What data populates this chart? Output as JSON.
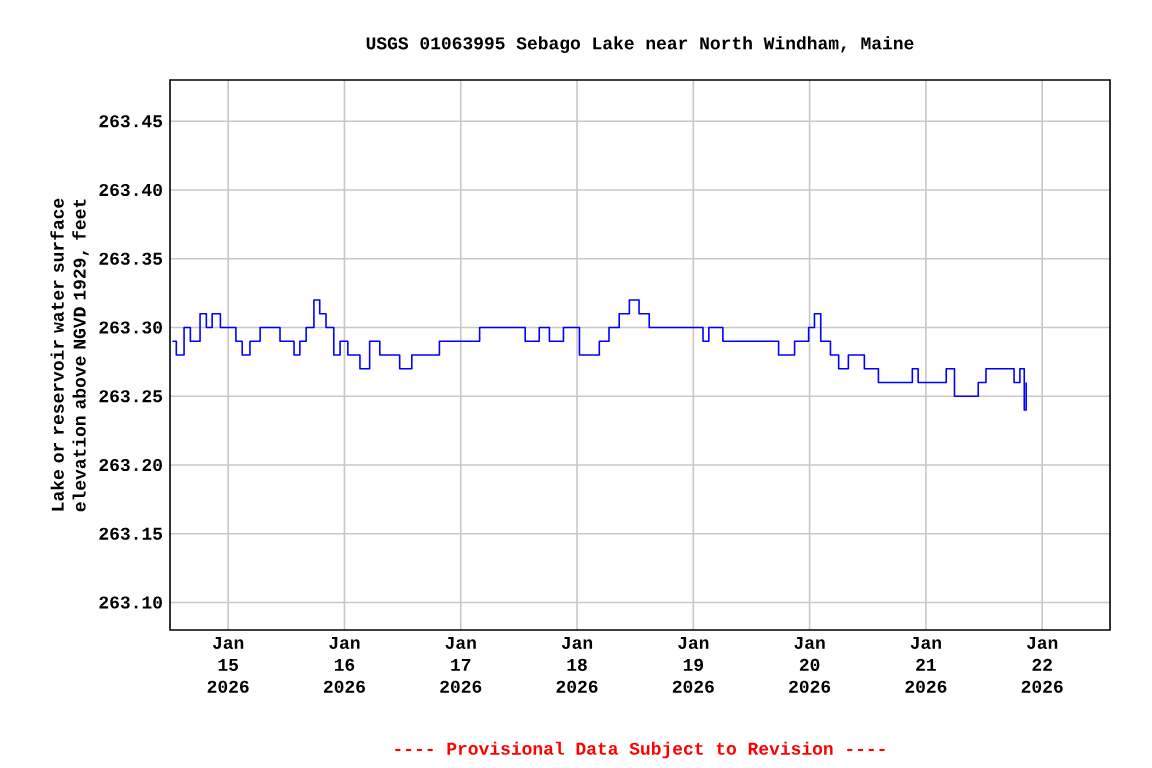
{
  "chart_data": {
    "type": "step",
    "title": "USGS 01063995 Sebago Lake near North Windham, Maine",
    "ylabel": "Lake or reservoir water surface elevation above NGVD 1929, feet",
    "annotations": [
      "---- Provisional Data Subject to Revision ----"
    ],
    "x": [
      "2026-01-14T12:30",
      "2026-01-14T13:18",
      "2026-01-14T14:54",
      "2026-01-14T16:12",
      "2026-01-14T18:12",
      "2026-01-14T19:30",
      "2026-01-14T20:42",
      "2026-01-14T22:24",
      "2026-01-15T01:36",
      "2026-01-15T02:54",
      "2026-01-15T04:30",
      "2026-01-15T06:36",
      "2026-01-15T10:42",
      "2026-01-15T13:36",
      "2026-01-15T14:48",
      "2026-01-15T16:06",
      "2026-01-15T17:42",
      "2026-01-15T18:54",
      "2026-01-15T20:12",
      "2026-01-15T21:48",
      "2026-01-15T23:06",
      "2026-01-16T00:42",
      "2026-01-16T03:12",
      "2026-01-16T05:12",
      "2026-01-16T07:18",
      "2026-01-16T09:48",
      "2026-01-16T11:24",
      "2026-01-16T13:54",
      "2026-01-16T19:36",
      "2026-01-17T03:54",
      "2026-01-17T11:18",
      "2026-01-17T13:18",
      "2026-01-17T16:12",
      "2026-01-17T18:18",
      "2026-01-17T21:12",
      "2026-01-18T00:30",
      "2026-01-18T02:54",
      "2026-01-18T04:36",
      "2026-01-18T06:36",
      "2026-01-18T08:42",
      "2026-01-18T10:48",
      "2026-01-18T12:48",
      "2026-01-18T14:54",
      "2026-01-18T21:00",
      "2026-01-18T23:06",
      "2026-01-19T02:00",
      "2026-01-19T03:12",
      "2026-01-19T06:06",
      "2026-01-19T08:36",
      "2026-01-19T13:30",
      "2026-01-19T17:36",
      "2026-01-19T20:54",
      "2026-01-19T23:48",
      "2026-01-20T01:00",
      "2026-01-20T02:18",
      "2026-01-20T04:18",
      "2026-01-20T06:00",
      "2026-01-20T08:00",
      "2026-01-20T11:18",
      "2026-01-20T14:12",
      "2026-01-20T18:18",
      "2026-01-20T21:12",
      "2026-01-20T22:24",
      "2026-01-21T00:30",
      "2026-01-21T04:12",
      "2026-01-21T05:54",
      "2026-01-21T08:42",
      "2026-01-21T10:48",
      "2026-01-21T12:24",
      "2026-01-21T16:54",
      "2026-01-21T18:12",
      "2026-01-21T19:24",
      "2026-01-21T20:18",
      "2026-01-21T20:42"
    ],
    "series": [
      {
        "color": "#0000ff",
        "values": [
          263.29,
          263.28,
          263.3,
          263.29,
          263.31,
          263.3,
          263.31,
          263.3,
          263.29,
          263.28,
          263.29,
          263.3,
          263.29,
          263.28,
          263.29,
          263.3,
          263.32,
          263.31,
          263.3,
          263.28,
          263.29,
          263.28,
          263.27,
          263.29,
          263.28,
          263.28,
          263.27,
          263.28,
          263.29,
          263.3,
          263.3,
          263.29,
          263.3,
          263.29,
          263.3,
          263.28,
          263.28,
          263.29,
          263.3,
          263.31,
          263.32,
          263.31,
          263.3,
          263.3,
          263.3,
          263.29,
          263.3,
          263.29,
          263.29,
          263.29,
          263.28,
          263.29,
          263.3,
          263.31,
          263.29,
          263.28,
          263.27,
          263.28,
          263.27,
          263.26,
          263.26,
          263.27,
          263.26,
          263.26,
          263.27,
          263.25,
          263.25,
          263.26,
          263.27,
          263.27,
          263.26,
          263.27,
          263.24,
          263.26
        ]
      }
    ],
    "xlim": [
      "2026-01-14T12:00",
      "2026-01-22T14:00"
    ],
    "xticks": [
      {
        "value": "2026-01-15",
        "label": "Jan 15 2026"
      },
      {
        "value": "2026-01-16",
        "label": "Jan 16 2026"
      },
      {
        "value": "2026-01-17",
        "label": "Jan 17 2026"
      },
      {
        "value": "2026-01-18",
        "label": "Jan 18 2026"
      },
      {
        "value": "2026-01-19",
        "label": "Jan 19 2026"
      },
      {
        "value": "2026-01-20",
        "label": "Jan 20 2026"
      },
      {
        "value": "2026-01-21",
        "label": "Jan 21 2026"
      },
      {
        "value": "2026-01-22",
        "label": "Jan 22 2026"
      }
    ],
    "ylim": [
      263.08,
      263.48
    ],
    "yticks": [
      {
        "value": 263.1,
        "label": "263.10"
      },
      {
        "value": 263.15,
        "label": "263.15"
      },
      {
        "value": 263.2,
        "label": "263.20"
      },
      {
        "value": 263.25,
        "label": "263.25"
      },
      {
        "value": 263.3,
        "label": "263.30"
      },
      {
        "value": 263.35,
        "label": "263.35"
      },
      {
        "value": 263.4,
        "label": "263.40"
      },
      {
        "value": 263.45,
        "label": "263.45"
      }
    ],
    "grid": true
  }
}
